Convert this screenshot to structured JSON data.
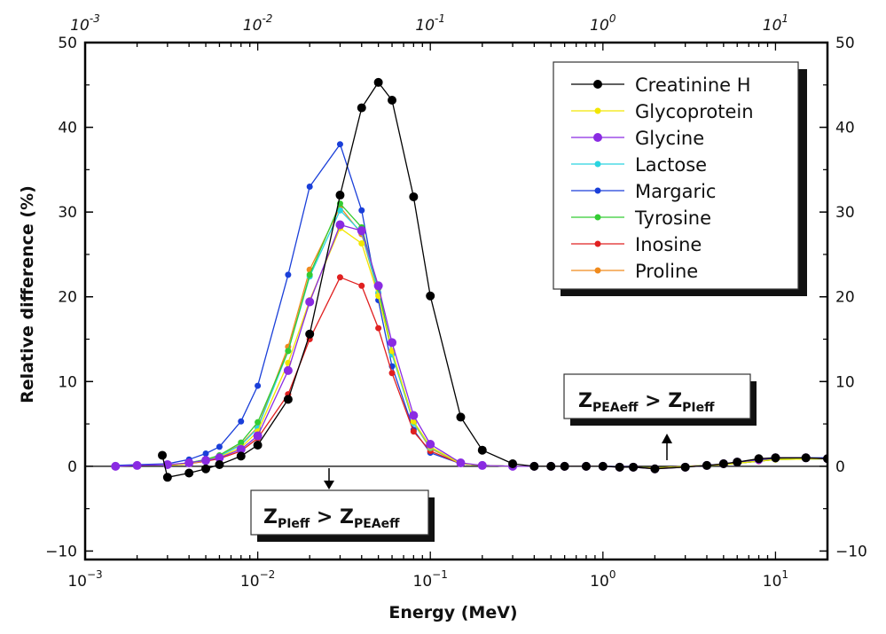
{
  "chart_data": {
    "type": "line",
    "xscale": "log",
    "xlabel": "Energy (MeV)",
    "ylabel": "Relative difference (%)",
    "xlim": [
      0.001,
      20
    ],
    "ylim": [
      -11,
      50
    ],
    "yticks": [
      -10,
      0,
      10,
      20,
      30,
      40,
      50
    ],
    "xticks": [
      {
        "value": 0.001,
        "base": "10",
        "exp": "−3"
      },
      {
        "value": 0.01,
        "base": "10",
        "exp": "−2"
      },
      {
        "value": 0.1,
        "base": "10",
        "exp": "−1"
      },
      {
        "value": 1,
        "base": "10",
        "exp": "0"
      },
      {
        "value": 10,
        "base": "10",
        "exp": "1"
      }
    ],
    "top_xticks": [
      {
        "value": 0.001,
        "base": "10",
        "exp": "-3"
      },
      {
        "value": 0.01,
        "base": "10",
        "exp": "-2"
      },
      {
        "value": 0.1,
        "base": "10",
        "exp": "-1"
      },
      {
        "value": 1,
        "base": "10",
        "exp": "0"
      },
      {
        "value": 10,
        "base": "10",
        "exp": "1"
      }
    ],
    "reference_line": 0,
    "series": [
      {
        "name": "Margaric",
        "color": "#1a3fd9",
        "marker_size": 3.5,
        "x": [
          0.0015,
          0.002,
          0.003,
          0.004,
          0.005,
          0.006,
          0.008,
          0.01,
          0.015,
          0.02,
          0.03,
          0.04,
          0.05,
          0.06,
          0.08,
          0.1,
          0.15,
          0.2,
          0.3,
          0.4,
          0.5,
          0.6,
          0.8,
          1,
          1.25,
          1.5,
          2,
          3,
          4,
          5,
          6,
          8,
          10,
          15,
          20
        ],
        "y": [
          0.1,
          0.2,
          0.3,
          0.8,
          1.5,
          2.3,
          5.3,
          9.5,
          22.6,
          33,
          38,
          30.2,
          19.6,
          11.8,
          4.3,
          1.6,
          0.3,
          0.1,
          0,
          0,
          0,
          0,
          0,
          0,
          0,
          -0.1,
          -0.2,
          0,
          0.1,
          0.2,
          0.4,
          0.7,
          0.9,
          1.0,
          1.0
        ]
      },
      {
        "name": "Inosine",
        "color": "#e02020",
        "marker_size": 3.5,
        "x": [
          0.003,
          0.004,
          0.005,
          0.006,
          0.008,
          0.01,
          0.015,
          0.02,
          0.03,
          0.04,
          0.05,
          0.06,
          0.08,
          0.1,
          0.15,
          0.2,
          0.3,
          0.4,
          0.5,
          0.6,
          0.8,
          1,
          1.5,
          2,
          3,
          5,
          8,
          10,
          15,
          20
        ],
        "y": [
          0.1,
          0.3,
          0.6,
          0.9,
          1.8,
          3.3,
          8.5,
          15,
          22.3,
          21.3,
          16.3,
          11,
          4.1,
          1.8,
          0.3,
          0.1,
          0,
          0,
          0,
          0,
          0,
          0,
          -0.1,
          -0.2,
          0,
          0.2,
          0.6,
          0.8,
          0.9,
          0.9
        ]
      },
      {
        "name": "Proline",
        "color": "#f08a1c",
        "marker_size": 3.5,
        "x": [
          0.003,
          0.004,
          0.005,
          0.006,
          0.008,
          0.01,
          0.015,
          0.02,
          0.03,
          0.04,
          0.05,
          0.06,
          0.08,
          0.1,
          0.15,
          0.2,
          0.3,
          0.5,
          1,
          2,
          5,
          10,
          20
        ],
        "y": [
          0.1,
          0.4,
          0.8,
          1.2,
          2.6,
          4.6,
          14.1,
          23.2,
          30.6,
          27.4,
          20.4,
          13.3,
          5.1,
          2.1,
          0.3,
          0.1,
          0,
          0,
          0,
          -0.2,
          0.2,
          0.8,
          0.9
        ]
      },
      {
        "name": "Lactose",
        "color": "#2ad4e0",
        "marker_size": 3.5,
        "x": [
          0.003,
          0.004,
          0.005,
          0.006,
          0.008,
          0.01,
          0.015,
          0.02,
          0.03,
          0.04,
          0.05,
          0.06,
          0.08,
          0.1,
          0.15,
          0.2,
          0.3,
          0.5,
          1,
          2,
          5,
          10,
          20
        ],
        "y": [
          0.1,
          0.4,
          0.8,
          1.2,
          2.5,
          4.5,
          13.6,
          22.4,
          30.2,
          27.6,
          20.5,
          13.2,
          5.1,
          2.2,
          0.3,
          0.1,
          0,
          0,
          0,
          -0.2,
          0.2,
          0.8,
          0.9
        ]
      },
      {
        "name": "Tyrosine",
        "color": "#33cc33",
        "marker_size": 3.5,
        "x": [
          0.003,
          0.004,
          0.005,
          0.006,
          0.008,
          0.01,
          0.015,
          0.02,
          0.03,
          0.04,
          0.05,
          0.06,
          0.08,
          0.1,
          0.15,
          0.2,
          0.3,
          0.5,
          1,
          2,
          5,
          10,
          20
        ],
        "y": [
          0.1,
          0.4,
          0.8,
          1.3,
          2.8,
          5.2,
          13.6,
          22.6,
          31,
          28.2,
          21,
          13.6,
          5.3,
          2.3,
          0.3,
          0.1,
          0,
          0,
          0,
          -0.2,
          0.2,
          0.8,
          0.9
        ]
      },
      {
        "name": "Glycoprotein",
        "color": "#f2e600",
        "marker_size": 3.5,
        "x": [
          0.003,
          0.004,
          0.005,
          0.006,
          0.008,
          0.01,
          0.015,
          0.02,
          0.03,
          0.04,
          0.05,
          0.06,
          0.08,
          0.1,
          0.15,
          0.2,
          0.3,
          0.5,
          1,
          2,
          5,
          10,
          20
        ],
        "y": [
          0.1,
          0.3,
          0.7,
          1.1,
          2.2,
          4.1,
          12.2,
          19.6,
          28.1,
          26.3,
          20.1,
          13.6,
          5.3,
          2.3,
          0.3,
          0.1,
          0,
          0,
          0,
          -0.2,
          0.2,
          0.8,
          0.9
        ]
      },
      {
        "name": "Glycine",
        "color": "#8a2be2",
        "marker_size": 5,
        "x": [
          0.0015,
          0.002,
          0.003,
          0.004,
          0.005,
          0.006,
          0.008,
          0.01,
          0.015,
          0.02,
          0.03,
          0.04,
          0.05,
          0.06,
          0.08,
          0.1,
          0.15,
          0.2,
          0.3,
          0.4,
          0.5,
          0.6,
          0.8,
          1,
          1.25,
          1.5,
          2,
          3,
          4,
          5,
          6,
          8,
          10,
          15,
          20
        ],
        "y": [
          0,
          0.1,
          0.2,
          0.4,
          0.7,
          1.0,
          2.0,
          3.6,
          11.3,
          19.4,
          28.5,
          27.8,
          21.3,
          14.6,
          6,
          2.6,
          0.4,
          0.1,
          0,
          0,
          0,
          0,
          0,
          0,
          -0.1,
          -0.1,
          -0.3,
          -0.1,
          0.1,
          0.3,
          0.5,
          0.8,
          1.0,
          1.0,
          0.9
        ]
      },
      {
        "name": "Creatinine H",
        "color": "#000000",
        "marker_size": 5,
        "x": [
          0.0028,
          0.003,
          0.004,
          0.005,
          0.006,
          0.008,
          0.01,
          0.015,
          0.02,
          0.03,
          0.04,
          0.05,
          0.06,
          0.08,
          0.1,
          0.15,
          0.2,
          0.3,
          0.4,
          0.5,
          0.6,
          0.8,
          1,
          1.25,
          1.5,
          2,
          3,
          4,
          5,
          6,
          8,
          10,
          15,
          20
        ],
        "y": [
          1.3,
          -1.3,
          -0.8,
          -0.3,
          0.2,
          1.2,
          2.5,
          7.9,
          15.6,
          32,
          42.3,
          45.3,
          43.2,
          31.8,
          20.1,
          5.8,
          1.9,
          0.3,
          0,
          0,
          0,
          0,
          0,
          -0.1,
          -0.1,
          -0.3,
          -0.1,
          0.1,
          0.3,
          0.5,
          0.9,
          1.0,
          1.0,
          0.9
        ]
      }
    ],
    "legend": {
      "placement": "top-right",
      "entries": [
        {
          "label": "Creatinine H",
          "color": "#000000"
        },
        {
          "label": "Glycoprotein",
          "color": "#f2e600"
        },
        {
          "label": "Glycine",
          "color": "#8a2be2"
        },
        {
          "label": "Lactose",
          "color": "#2ad4e0"
        },
        {
          "label": "Margaric",
          "color": "#1a3fd9"
        },
        {
          "label": "Tyrosine",
          "color": "#33cc33"
        },
        {
          "label": "Inosine",
          "color": "#e02020"
        },
        {
          "label": "Proline",
          "color": "#f08a1c"
        }
      ]
    },
    "annotations": {
      "upper": {
        "lhs": "Z",
        "lhs_sub": "PEAeff",
        "op": " > ",
        "rhs": "Z",
        "rhs_sub": "PIeff",
        "arrow": "up"
      },
      "lower": {
        "lhs": "Z",
        "lhs_sub": "PIeff",
        "op": " > ",
        "rhs": "Z",
        "rhs_sub": "PEAeff",
        "arrow": "down"
      }
    }
  }
}
